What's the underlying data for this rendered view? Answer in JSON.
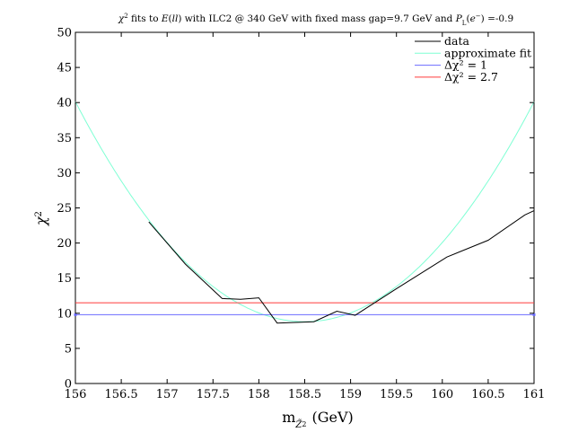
{
  "chart_data": {
    "type": "line",
    "title": "χ² fits to E(ll) with ILC2 @ 340 GeV with fixed mass gap=9.7 GeV and P_L(e⁻) =-0.9",
    "xlabel": "m_Z̃2 (GeV)",
    "ylabel": "χ²",
    "xlim": [
      156,
      161
    ],
    "ylim": [
      0,
      50
    ],
    "x_ticks": [
      "156",
      "156.5",
      "157",
      "157.5",
      "158",
      "158.5",
      "159",
      "159.5",
      "160",
      "160.5",
      "161"
    ],
    "y_ticks": [
      "0",
      "5",
      "10",
      "15",
      "20",
      "25",
      "30",
      "35",
      "40",
      "45",
      "50"
    ],
    "grid": false,
    "legend_position": "top-right",
    "series": [
      {
        "name": "data",
        "color": "#000000",
        "x": [
          156.8,
          157.2,
          157.6,
          157.8,
          158.0,
          158.2,
          158.6,
          158.85,
          159.05,
          159.5,
          160.05,
          160.5,
          160.9,
          161.0
        ],
        "y": [
          23.0,
          17.0,
          12.1,
          12.0,
          12.2,
          8.6,
          8.8,
          10.3,
          9.7,
          13.5,
          18.0,
          20.4,
          24.0,
          24.6
        ]
      },
      {
        "name": "approximate fit",
        "color": "#7fffd4",
        "function": "8.8 + 5.01 * (x - 158.5)^2",
        "x": [
          156.0,
          156.5,
          157.0,
          157.5,
          158.0,
          158.5,
          159.0,
          159.5,
          160.0,
          160.5,
          161.0
        ],
        "y": [
          40.1,
          28.8,
          20.1,
          13.8,
          10.1,
          8.8,
          10.1,
          13.8,
          20.1,
          28.8,
          40.1
        ]
      },
      {
        "name": "Δχ² = 1",
        "color": "#6b6bff",
        "x": [
          156,
          161
        ],
        "y": [
          9.8,
          9.8
        ]
      },
      {
        "name": "Δχ² = 2.7",
        "color": "#ff3b3b",
        "x": [
          156,
          161
        ],
        "y": [
          11.5,
          11.5
        ]
      }
    ]
  }
}
